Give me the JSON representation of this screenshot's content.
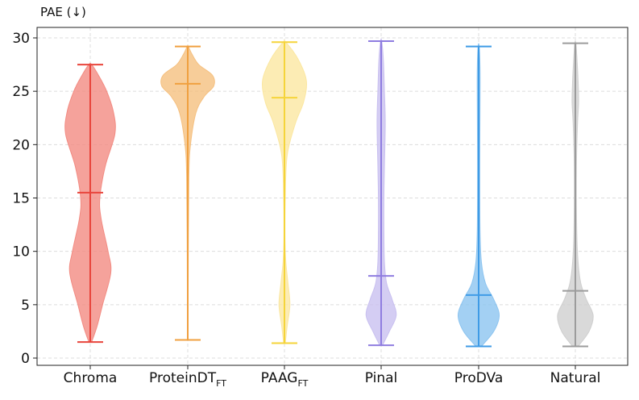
{
  "chart_data": {
    "type": "violin",
    "ylabel": "PAE (↓)",
    "ylim": [
      0,
      30
    ],
    "yticks": [
      0,
      5,
      10,
      15,
      20,
      25,
      30
    ],
    "grid": true,
    "categories": [
      {
        "label": "Chroma",
        "sub": ""
      },
      {
        "label": "ProteinDT",
        "sub": "FT"
      },
      {
        "label": "PAAG",
        "sub": "FT"
      },
      {
        "label": "Pinal",
        "sub": ""
      },
      {
        "label": "ProDVa",
        "sub": ""
      },
      {
        "label": "Natural",
        "sub": ""
      }
    ],
    "series": [
      {
        "min": 1.5,
        "max": 27.5,
        "median": 15.5,
        "color": "#e8453c",
        "fill": "#f28b82",
        "profile": [
          [
            1.5,
            0.05
          ],
          [
            3,
            0.25
          ],
          [
            5,
            0.45
          ],
          [
            8,
            0.75
          ],
          [
            10,
            0.65
          ],
          [
            13,
            0.4
          ],
          [
            15,
            0.35
          ],
          [
            18,
            0.55
          ],
          [
            21,
            0.9
          ],
          [
            23,
            0.85
          ],
          [
            25,
            0.6
          ],
          [
            26.5,
            0.3
          ],
          [
            27.5,
            0.05
          ]
        ]
      },
      {
        "min": 1.7,
        "max": 29.2,
        "median": 25.7,
        "color": "#f0a040",
        "fill": "#f5c080",
        "profile": [
          [
            1.7,
            0.01
          ],
          [
            10,
            0.02
          ],
          [
            17,
            0.04
          ],
          [
            20,
            0.1
          ],
          [
            23,
            0.3
          ],
          [
            24.5,
            0.6
          ],
          [
            25.5,
            0.95
          ],
          [
            26.5,
            0.9
          ],
          [
            27.5,
            0.4
          ],
          [
            28.5,
            0.15
          ],
          [
            29.2,
            0.02
          ]
        ]
      },
      {
        "min": 1.4,
        "max": 29.6,
        "median": 24.4,
        "color": "#f5d43a",
        "fill": "#fbe7a1",
        "profile": [
          [
            1.4,
            0.03
          ],
          [
            3,
            0.1
          ],
          [
            5,
            0.2
          ],
          [
            7,
            0.13
          ],
          [
            9,
            0.05
          ],
          [
            11,
            0.02
          ],
          [
            15,
            0.03
          ],
          [
            19,
            0.1
          ],
          [
            22,
            0.4
          ],
          [
            24,
            0.7
          ],
          [
            26,
            0.8
          ],
          [
            28,
            0.5
          ],
          [
            29.6,
            0.05
          ]
        ]
      },
      {
        "min": 1.2,
        "max": 29.7,
        "median": 7.7,
        "color": "#8f7de0",
        "fill": "#c9c0f0",
        "profile": [
          [
            1.2,
            0.05
          ],
          [
            2.5,
            0.3
          ],
          [
            4,
            0.55
          ],
          [
            5.5,
            0.4
          ],
          [
            7,
            0.2
          ],
          [
            9,
            0.12
          ],
          [
            12,
            0.1
          ],
          [
            15,
            0.1
          ],
          [
            18,
            0.12
          ],
          [
            22,
            0.15
          ],
          [
            25,
            0.12
          ],
          [
            28,
            0.08
          ],
          [
            29.7,
            0.02
          ]
        ]
      },
      {
        "min": 1.1,
        "max": 29.2,
        "median": 5.9,
        "color": "#3f9be6",
        "fill": "#8cc4f0",
        "profile": [
          [
            1.1,
            0.1
          ],
          [
            2.5,
            0.55
          ],
          [
            4,
            0.75
          ],
          [
            5.5,
            0.55
          ],
          [
            7,
            0.25
          ],
          [
            9,
            0.1
          ],
          [
            12,
            0.05
          ],
          [
            18,
            0.04
          ],
          [
            24,
            0.05
          ],
          [
            27,
            0.05
          ],
          [
            29.2,
            0.02
          ]
        ]
      },
      {
        "min": 1.1,
        "max": 29.5,
        "median": 6.3,
        "color": "#9c9c9c",
        "fill": "#cfcfcf",
        "profile": [
          [
            1.1,
            0.1
          ],
          [
            2.5,
            0.5
          ],
          [
            4,
            0.65
          ],
          [
            5.5,
            0.4
          ],
          [
            7,
            0.2
          ],
          [
            9,
            0.1
          ],
          [
            12,
            0.05
          ],
          [
            18,
            0.04
          ],
          [
            22,
            0.08
          ],
          [
            24,
            0.12
          ],
          [
            26,
            0.1
          ],
          [
            28,
            0.06
          ],
          [
            29.5,
            0.02
          ]
        ]
      }
    ]
  }
}
